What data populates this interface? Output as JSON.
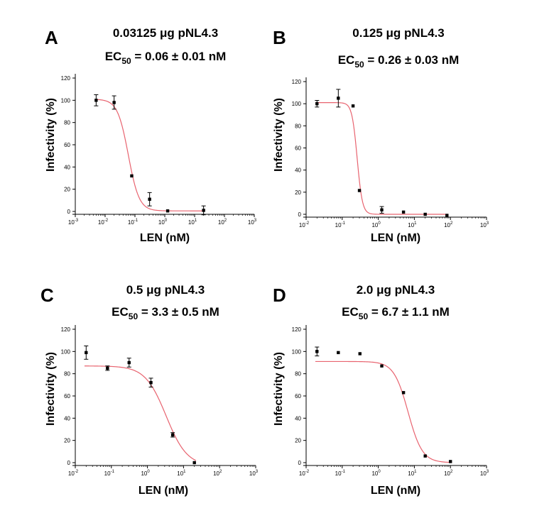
{
  "figure": {
    "panels_count": 4
  },
  "chart_data": [
    {
      "type": "scatter",
      "panel_letter": "A",
      "title_line1": "0.03125 μg pNL4.3",
      "ec_prefix": "EC",
      "ec_subscript": "50",
      "ec_value": " = 0.06 ± 0.01 nM",
      "xlabel": "LEN (nM)",
      "ylabel": "Infectivity (%)",
      "xscale": "log",
      "xlim": [
        0.001,
        1000
      ],
      "ylim": [
        0,
        120
      ],
      "yticks": [
        0,
        20,
        40,
        60,
        80,
        100,
        120
      ],
      "xtick_exponents": [
        -3,
        -2,
        -1,
        0,
        1,
        2,
        3
      ],
      "series": [
        {
          "name": "data",
          "x": [
            0.005,
            0.02,
            0.078,
            0.31,
            1.25,
            20
          ],
          "y": [
            100,
            98,
            32,
            11,
            0.5,
            1
          ],
          "err": [
            5,
            6,
            0,
            6,
            0,
            4
          ]
        }
      ],
      "fit": {
        "type": "4PL",
        "top": 101,
        "bottom": 0.5,
        "ec50": 0.06,
        "hill": 2.4,
        "color": "#e8636f"
      }
    },
    {
      "type": "scatter",
      "panel_letter": "B",
      "title_line1": "0.125 μg pNL4.3",
      "ec_prefix": "EC",
      "ec_subscript": "50",
      "ec_value": " = 0.26 ± 0.03 nM",
      "xlabel": "LEN (nM)",
      "ylabel": "Infectivity (%)",
      "xscale": "log",
      "xlim": [
        0.01,
        1000
      ],
      "ylim": [
        0,
        120
      ],
      "yticks": [
        0,
        20,
        40,
        60,
        80,
        100,
        120
      ],
      "xtick_exponents": [
        -2,
        -1,
        0,
        1,
        2,
        3
      ],
      "series": [
        {
          "name": "data",
          "x": [
            0.02,
            0.078,
            0.2,
            0.3,
            1.25,
            5,
            20,
            80
          ],
          "y": [
            100,
            105,
            98,
            21.5,
            4,
            2,
            0,
            -1
          ],
          "err": [
            3,
            8,
            0,
            0,
            3,
            0,
            0,
            0
          ]
        }
      ],
      "fit": {
        "type": "4PL",
        "top": 101,
        "bottom": 0,
        "ec50": 0.26,
        "hill": 6,
        "color": "#e8636f"
      }
    },
    {
      "type": "scatter",
      "panel_letter": "C",
      "title_line1": "0.5 μg pNL4.3",
      "ec_prefix": "EC",
      "ec_subscript": "50",
      "ec_value": " = 3.3 ± 0.5 nM",
      "xlabel": "LEN (nM)",
      "ylabel": "Infectivity (%)",
      "xscale": "log",
      "xlim": [
        0.01,
        1000
      ],
      "ylim": [
        0,
        120
      ],
      "yticks": [
        0,
        20,
        40,
        60,
        80,
        100,
        120
      ],
      "xtick_exponents": [
        -2,
        -1,
        0,
        1,
        2,
        3
      ],
      "series": [
        {
          "name": "data",
          "x": [
            0.02,
            0.078,
            0.31,
            1.25,
            5,
            20
          ],
          "y": [
            99,
            85,
            90,
            72,
            25,
            0
          ],
          "err": [
            6,
            2,
            4,
            4,
            2,
            0
          ]
        }
      ],
      "fit": {
        "type": "4PL",
        "top": 87,
        "bottom": -3,
        "ec50": 3.3,
        "hill": 1.5,
        "color": "#e8636f"
      }
    },
    {
      "type": "scatter",
      "panel_letter": "D",
      "title_line1": "2.0 μg pNL4.3",
      "ec_prefix": "EC",
      "ec_subscript": "50",
      "ec_value": " = 6.7 ± 1.1 nM",
      "xlabel": "LEN (nM)",
      "ylabel": "Infectivity (%)",
      "xscale": "log",
      "xlim": [
        0.01,
        1000
      ],
      "ylim": [
        0,
        120
      ],
      "yticks": [
        0,
        20,
        40,
        60,
        80,
        100,
        120
      ],
      "xtick_exponents": [
        -2,
        -1,
        0,
        1,
        2,
        3
      ],
      "series": [
        {
          "name": "data",
          "x": [
            0.02,
            0.078,
            0.31,
            1.25,
            5,
            20,
            100
          ],
          "y": [
            100,
            99,
            98,
            87,
            63,
            6,
            1
          ],
          "err": [
            4,
            0,
            0,
            0,
            0,
            0,
            0
          ]
        }
      ],
      "fit": {
        "type": "4PL",
        "top": 91,
        "bottom": 0,
        "ec50": 6.7,
        "hill": 2.2,
        "color": "#e8636f"
      }
    }
  ]
}
